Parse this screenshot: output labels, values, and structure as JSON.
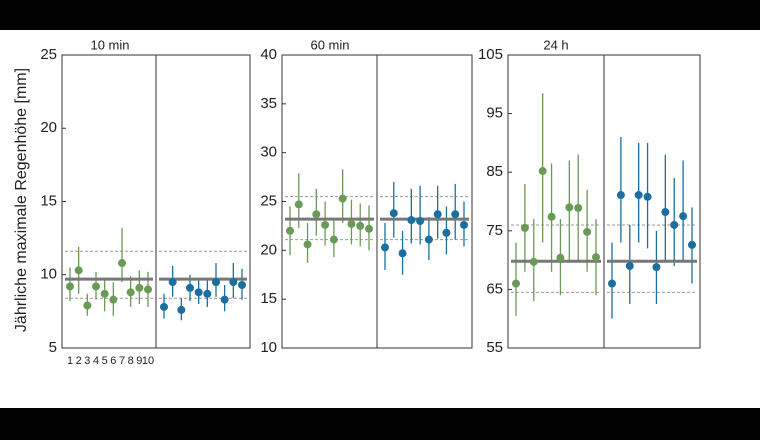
{
  "ylabel": "Jährliche maximale Regenhöhe [mm]",
  "chart_data": [
    {
      "type": "errorbar",
      "title": "10 min",
      "categories": [
        "1",
        "2",
        "3",
        "4",
        "5",
        "6",
        "7",
        "8",
        "9",
        "10"
      ],
      "ylim": [
        5,
        25
      ],
      "yticks": [
        5,
        10,
        15,
        20,
        25
      ],
      "series": [
        {
          "color": "#6a9a58",
          "values": [
            9.2,
            10.3,
            7.9,
            9.2,
            8.7,
            8.3,
            10.8,
            8.8,
            9.1,
            9.0
          ],
          "lower": [
            8.2,
            8.7,
            7.2,
            8.3,
            7.5,
            7.2,
            9.5,
            7.8,
            8.0,
            7.8
          ],
          "upper": [
            10.5,
            11.9,
            8.7,
            10.2,
            9.8,
            9.5,
            13.2,
            9.9,
            10.3,
            10.2
          ],
          "mean": 9.7,
          "band": [
            8.4,
            11.6
          ]
        },
        {
          "color": "#1a6fa0",
          "values": [
            7.8,
            9.5,
            7.6,
            9.1,
            8.8,
            8.7,
            9.5,
            8.3,
            9.5,
            9.3
          ],
          "lower": [
            7.0,
            8.5,
            6.9,
            8.2,
            8.0,
            7.8,
            8.5,
            7.5,
            8.4,
            8.3
          ],
          "upper": [
            8.7,
            10.6,
            8.4,
            10.0,
            9.7,
            9.7,
            10.8,
            9.3,
            10.8,
            10.4
          ],
          "mean": 9.7,
          "band": [
            8.4,
            11.6
          ]
        }
      ]
    },
    {
      "type": "errorbar",
      "title": "60 min",
      "ylim": [
        10,
        40
      ],
      "yticks": [
        10,
        15,
        20,
        25,
        30,
        35,
        40
      ],
      "series": [
        {
          "color": "#6a9a58",
          "values": [
            22.0,
            24.7,
            20.6,
            23.7,
            22.6,
            21.1,
            25.3,
            22.7,
            22.5,
            22.2
          ],
          "lower": [
            19.5,
            22.3,
            18.7,
            21.5,
            20.5,
            19.3,
            22.8,
            20.6,
            20.4,
            20.0
          ],
          "upper": [
            24.5,
            27.9,
            22.8,
            26.3,
            25.0,
            23.3,
            28.3,
            25.2,
            24.8,
            24.6
          ],
          "mean": 23.2,
          "band": [
            21.1,
            25.5
          ]
        },
        {
          "color": "#1a6fa0",
          "values": [
            20.3,
            23.8,
            19.7,
            23.1,
            23.0,
            21.1,
            23.7,
            21.8,
            23.7,
            22.6
          ],
          "lower": [
            18.0,
            21.3,
            17.5,
            20.7,
            20.6,
            19.0,
            21.2,
            19.6,
            21.1,
            20.4
          ],
          "upper": [
            22.8,
            27.0,
            22.0,
            26.3,
            26.6,
            23.4,
            26.6,
            24.5,
            26.8,
            25.0
          ],
          "mean": 23.2,
          "band": [
            21.1,
            25.5
          ]
        }
      ]
    },
    {
      "type": "errorbar",
      "title": "24 h",
      "ylim": [
        55,
        105
      ],
      "yticks": [
        55,
        65,
        75,
        85,
        95,
        105
      ],
      "series": [
        {
          "color": "#6a9a58",
          "values": [
            66.0,
            75.5,
            69.7,
            85.2,
            77.4,
            70.4,
            79.0,
            78.9,
            74.8,
            70.5
          ],
          "lower": [
            60.5,
            68,
            63,
            73,
            68,
            64,
            70,
            70,
            68,
            64
          ],
          "upper": [
            73,
            83,
            77,
            98.5,
            86.5,
            77,
            87,
            88,
            82,
            77
          ],
          "mean": 69.8,
          "band": [
            64.5,
            76
          ]
        },
        {
          "color": "#1a6fa0",
          "values": [
            66,
            81.1,
            69,
            81.1,
            80.8,
            68.8,
            78.2,
            76,
            77.5,
            72.6
          ],
          "lower": [
            60,
            73,
            62.5,
            73,
            72,
            62.5,
            70,
            69,
            70,
            66
          ],
          "upper": [
            73,
            91,
            76,
            90,
            90,
            75,
            88,
            84,
            87,
            79
          ],
          "mean": 69.8,
          "band": [
            64.5,
            76
          ]
        }
      ]
    }
  ]
}
